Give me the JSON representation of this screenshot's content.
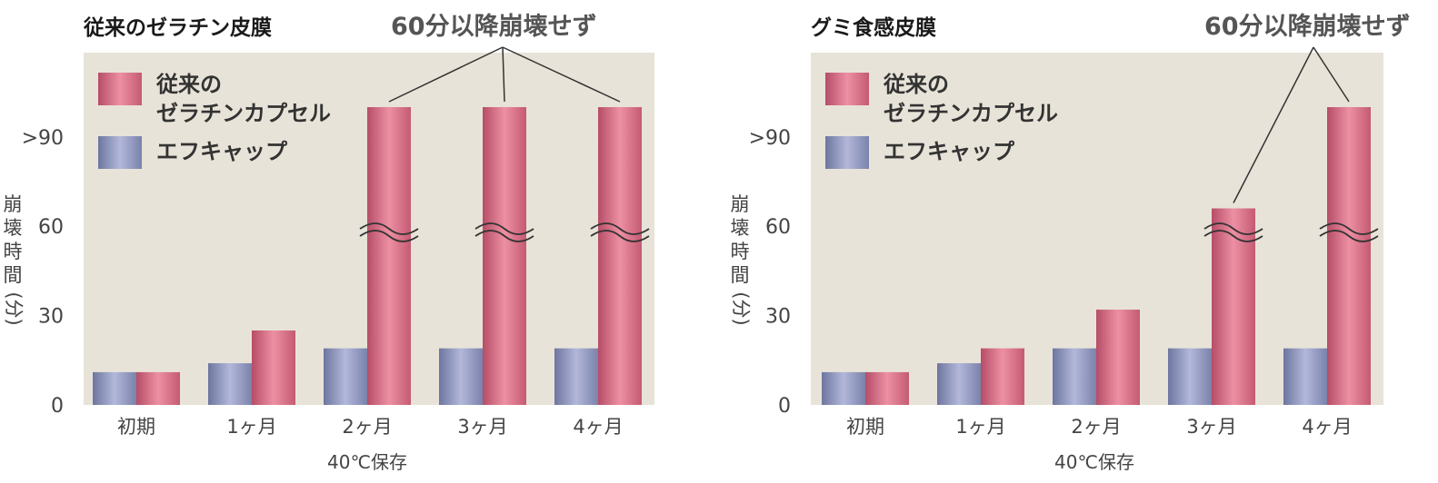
{
  "chart_data": [
    {
      "type": "bar",
      "title": "従来のゼラチン皮膜",
      "annotation": "60分以降崩壊せず",
      "ylabel": [
        "崩",
        "壊",
        "時",
        "間",
        "(分)"
      ],
      "xlabel": "40℃保存",
      "yticks": [
        "0",
        "30",
        "60",
        ">90"
      ],
      "ylim": [
        0,
        100
      ],
      "categories": [
        "初期",
        "1ヶ月",
        "2ヶ月",
        "3ヶ月",
        "4ヶ月"
      ],
      "legend_position": "top-left",
      "grid": false,
      "series": [
        {
          "name": "エフキャップ",
          "values": [
            11,
            14,
            19,
            19,
            19
          ]
        },
        {
          "name": "従来の\nゼラチンカプセル",
          "values": [
            11,
            25,
            100,
            100,
            100
          ]
        }
      ],
      "broken_axis_categories": [
        2,
        3,
        4
      ],
      "annotated_categories": [
        2,
        3,
        4
      ]
    },
    {
      "type": "bar",
      "title": "グミ食感皮膜",
      "annotation": "60分以降崩壊せず",
      "ylabel": [
        "崩",
        "壊",
        "時",
        "間",
        "(分)"
      ],
      "xlabel": "40℃保存",
      "yticks": [
        "0",
        "30",
        "60",
        ">90"
      ],
      "ylim": [
        0,
        100
      ],
      "categories": [
        "初期",
        "1ヶ月",
        "2ヶ月",
        "3ヶ月",
        "4ヶ月"
      ],
      "legend_position": "top-left",
      "grid": false,
      "series": [
        {
          "name": "エフキャップ",
          "values": [
            11,
            14,
            19,
            19,
            19
          ]
        },
        {
          "name": "従来の\nゼラチンカプセル",
          "values": [
            11,
            19,
            32,
            66,
            100
          ]
        }
      ],
      "broken_axis_categories": [
        3,
        4
      ],
      "annotated_categories": [
        3,
        4
      ]
    }
  ],
  "colors": {
    "plot_background": "#e8e3d8",
    "blue_series": "#9aa0c6",
    "pink_series": "#e08095"
  }
}
